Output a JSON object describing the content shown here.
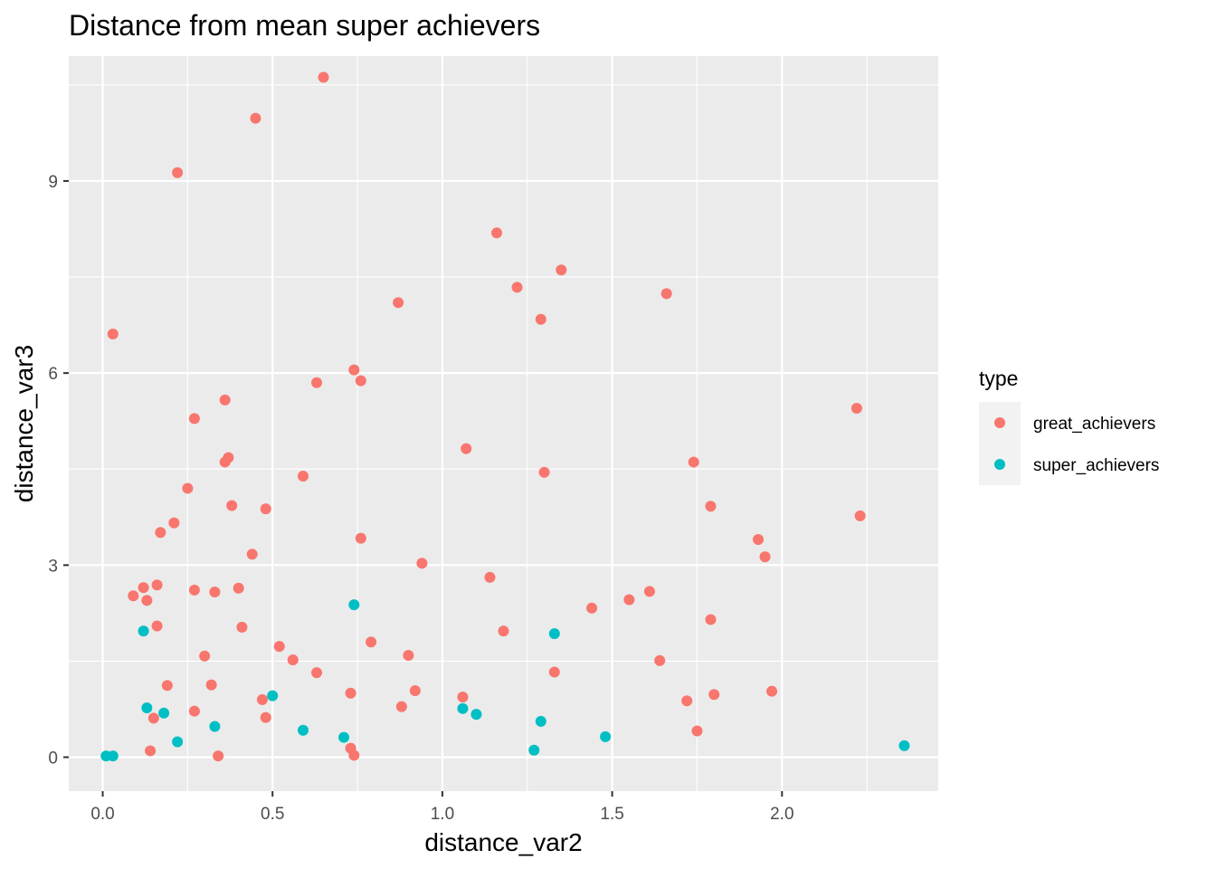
{
  "chart_data": {
    "type": "scatter",
    "title": "Distance from mean super achievers",
    "xlabel": "distance_var2",
    "ylabel": "distance_var3",
    "xlim": [
      -0.1,
      2.46
    ],
    "ylim": [
      -0.53,
      10.95
    ],
    "x_ticks": [
      0.0,
      0.5,
      1.0,
      1.5,
      2.0
    ],
    "x_tick_labels": [
      "0.0",
      "0.5",
      "1.0",
      "1.5",
      "2.0"
    ],
    "y_ticks": [
      0,
      3,
      6,
      9
    ],
    "y_tick_labels": [
      "0",
      "3",
      "6",
      "9"
    ],
    "grid": true,
    "legend": {
      "title": "type",
      "position": "right"
    },
    "series": [
      {
        "name": "great_achievers",
        "color": "#F8766D",
        "points": [
          [
            0.65,
            10.62
          ],
          [
            0.45,
            9.98
          ],
          [
            0.22,
            9.13
          ],
          [
            1.16,
            8.19
          ],
          [
            1.35,
            7.61
          ],
          [
            1.22,
            7.34
          ],
          [
            1.66,
            7.24
          ],
          [
            0.87,
            7.1
          ],
          [
            1.29,
            6.84
          ],
          [
            0.03,
            6.61
          ],
          [
            0.74,
            6.05
          ],
          [
            0.76,
            5.88
          ],
          [
            0.63,
            5.85
          ],
          [
            0.36,
            5.58
          ],
          [
            2.22,
            5.45
          ],
          [
            0.27,
            5.29
          ],
          [
            1.07,
            4.82
          ],
          [
            0.37,
            4.68
          ],
          [
            0.36,
            4.61
          ],
          [
            1.74,
            4.61
          ],
          [
            1.3,
            4.45
          ],
          [
            0.59,
            4.39
          ],
          [
            0.25,
            4.2
          ],
          [
            0.38,
            3.93
          ],
          [
            1.79,
            3.92
          ],
          [
            0.48,
            3.88
          ],
          [
            2.23,
            3.77
          ],
          [
            0.21,
            3.66
          ],
          [
            0.17,
            3.51
          ],
          [
            0.76,
            3.42
          ],
          [
            1.93,
            3.4
          ],
          [
            0.44,
            3.17
          ],
          [
            1.95,
            3.13
          ],
          [
            0.94,
            3.03
          ],
          [
            1.14,
            2.81
          ],
          [
            0.16,
            2.69
          ],
          [
            0.4,
            2.64
          ],
          [
            0.12,
            2.65
          ],
          [
            0.27,
            2.61
          ],
          [
            1.61,
            2.59
          ],
          [
            0.33,
            2.58
          ],
          [
            0.09,
            2.52
          ],
          [
            1.55,
            2.46
          ],
          [
            0.13,
            2.45
          ],
          [
            1.44,
            2.33
          ],
          [
            1.79,
            2.15
          ],
          [
            0.16,
            2.05
          ],
          [
            0.41,
            2.03
          ],
          [
            1.18,
            1.97
          ],
          [
            0.79,
            1.8
          ],
          [
            0.52,
            1.73
          ],
          [
            0.3,
            1.58
          ],
          [
            0.9,
            1.59
          ],
          [
            0.56,
            1.52
          ],
          [
            1.64,
            1.51
          ],
          [
            0.63,
            1.32
          ],
          [
            1.33,
            1.33
          ],
          [
            0.19,
            1.12
          ],
          [
            0.32,
            1.13
          ],
          [
            0.92,
            1.04
          ],
          [
            1.97,
            1.03
          ],
          [
            0.73,
            1.0
          ],
          [
            1.8,
            0.98
          ],
          [
            1.06,
            0.94
          ],
          [
            0.47,
            0.9
          ],
          [
            1.72,
            0.88
          ],
          [
            0.88,
            0.79
          ],
          [
            0.27,
            0.72
          ],
          [
            0.15,
            0.61
          ],
          [
            0.48,
            0.62
          ],
          [
            1.75,
            0.41
          ],
          [
            0.73,
            0.14
          ],
          [
            0.14,
            0.1
          ],
          [
            0.74,
            0.03
          ],
          [
            0.34,
            0.02
          ]
        ]
      },
      {
        "name": "super_achievers",
        "color": "#00BFC4",
        "points": [
          [
            0.74,
            2.38
          ],
          [
            0.12,
            1.97
          ],
          [
            1.33,
            1.93
          ],
          [
            0.5,
            0.96
          ],
          [
            0.13,
            0.77
          ],
          [
            1.06,
            0.76
          ],
          [
            0.18,
            0.69
          ],
          [
            1.1,
            0.67
          ],
          [
            1.29,
            0.56
          ],
          [
            0.33,
            0.48
          ],
          [
            0.59,
            0.42
          ],
          [
            0.71,
            0.31
          ],
          [
            1.48,
            0.32
          ],
          [
            0.22,
            0.24
          ],
          [
            2.36,
            0.18
          ],
          [
            1.27,
            0.11
          ],
          [
            0.01,
            0.02
          ],
          [
            0.03,
            0.02
          ]
        ]
      }
    ]
  }
}
